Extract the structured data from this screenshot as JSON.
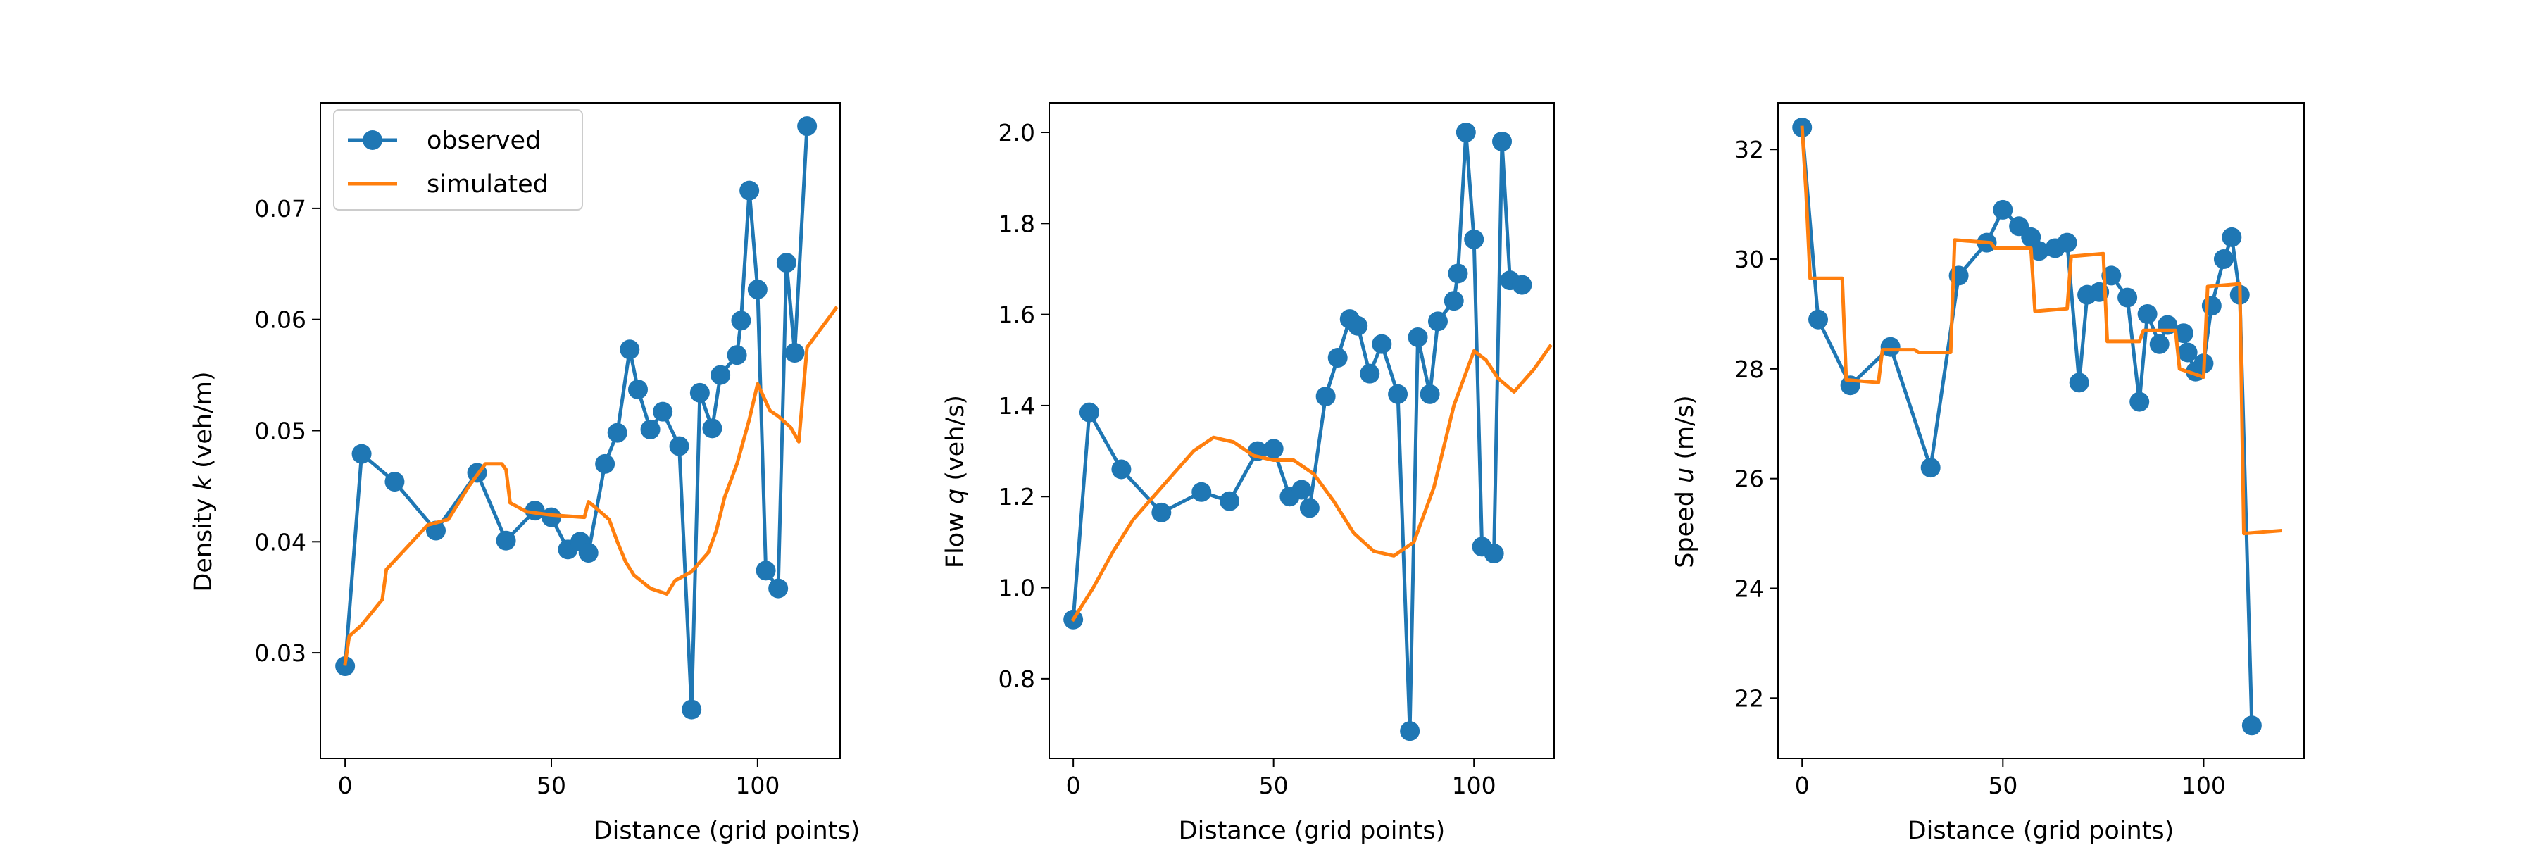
{
  "colors": {
    "observed": "#1f77b4",
    "simulated": "#ff7f0e"
  },
  "legend": {
    "placement": "upper-left",
    "panel": 0,
    "entries": [
      "observed",
      "simulated"
    ]
  },
  "chart_data": [
    {
      "type": "line",
      "xlabel": "Distance (grid points)",
      "ylabel_prefix": "Density ",
      "ylabel_var": "k",
      "ylabel_suffix": " (veh/m)",
      "xlim": [
        -6,
        120
      ],
      "ylim": [
        0.0205,
        0.0795
      ],
      "xticks": [
        0,
        50,
        100
      ],
      "yticks": [
        0.03,
        0.04,
        0.05,
        0.06,
        0.07
      ],
      "ytick_labels": [
        "0.03",
        "0.04",
        "0.05",
        "0.06",
        "0.07"
      ],
      "series": [
        {
          "name": "observed",
          "marker": "circle",
          "x": [
            0,
            4,
            12,
            22,
            32,
            39,
            46,
            50,
            54,
            57,
            59,
            63,
            66,
            69,
            71,
            74,
            77,
            81,
            84,
            86,
            89,
            91,
            95,
            96,
            98,
            100,
            102,
            105,
            107,
            109,
            112
          ],
          "y": [
            0.0288,
            0.0479,
            0.0454,
            0.041,
            0.0462,
            0.0401,
            0.0428,
            0.0422,
            0.0393,
            0.04,
            0.039,
            0.047,
            0.0498,
            0.0573,
            0.0537,
            0.0501,
            0.0517,
            0.0486,
            0.0249,
            0.0534,
            0.0502,
            0.055,
            0.0568,
            0.0599,
            0.0716,
            0.0627,
            0.0374,
            0.0358,
            0.0651,
            0.057,
            0.0774
          ]
        },
        {
          "name": "simulated",
          "x": [
            0,
            1,
            4,
            9,
            10,
            15,
            20,
            25,
            30,
            34,
            38,
            39,
            40,
            44,
            50,
            54,
            58,
            59,
            60,
            64,
            66,
            68,
            70,
            74,
            78,
            80,
            84,
            88,
            90,
            92,
            95,
            98,
            100,
            103,
            105,
            108,
            110,
            112,
            115,
            118,
            119
          ],
          "y": [
            0.029,
            0.0315,
            0.0325,
            0.0348,
            0.0375,
            0.0395,
            0.0415,
            0.042,
            0.045,
            0.047,
            0.047,
            0.0465,
            0.0435,
            0.0427,
            0.0424,
            0.0423,
            0.0422,
            0.0436,
            0.0433,
            0.042,
            0.04,
            0.0382,
            0.037,
            0.0358,
            0.0353,
            0.0365,
            0.0373,
            0.039,
            0.041,
            0.044,
            0.047,
            0.051,
            0.0542,
            0.0518,
            0.0513,
            0.0503,
            0.049,
            0.0575,
            0.059,
            0.0605,
            0.061
          ]
        }
      ]
    },
    {
      "type": "line",
      "xlabel": "Distance (grid points)",
      "ylabel_prefix": "Flow ",
      "ylabel_var": "q",
      "ylabel_suffix": " (veh/s)",
      "xlim": [
        -6,
        120
      ],
      "ylim": [
        0.625,
        2.065
      ],
      "xticks": [
        0,
        50,
        100
      ],
      "yticks": [
        0.8,
        1.0,
        1.2,
        1.4,
        1.6,
        1.8,
        2.0
      ],
      "ytick_labels": [
        "0.8",
        "1.0",
        "1.2",
        "1.4",
        "1.6",
        "1.8",
        "2.0"
      ],
      "series": [
        {
          "name": "observed",
          "marker": "circle",
          "x": [
            0,
            4,
            12,
            22,
            32,
            39,
            46,
            50,
            54,
            57,
            59,
            63,
            66,
            69,
            71,
            74,
            77,
            81,
            84,
            86,
            89,
            91,
            95,
            96,
            98,
            100,
            102,
            105,
            107,
            109,
            112
          ],
          "y": [
            0.93,
            1.385,
            1.26,
            1.165,
            1.21,
            1.19,
            1.3,
            1.305,
            1.2,
            1.215,
            1.175,
            1.42,
            1.505,
            1.59,
            1.575,
            1.47,
            1.535,
            1.425,
            0.685,
            1.55,
            1.425,
            1.585,
            1.63,
            1.69,
            2.0,
            1.765,
            1.09,
            1.075,
            1.98,
            1.675,
            1.665
          ]
        },
        {
          "name": "simulated",
          "x": [
            0,
            5,
            10,
            15,
            20,
            25,
            30,
            35,
            40,
            45,
            50,
            55,
            60,
            65,
            70,
            75,
            80,
            85,
            90,
            95,
            100,
            103,
            106,
            110,
            115,
            119
          ],
          "y": [
            0.93,
            1.0,
            1.08,
            1.15,
            1.2,
            1.25,
            1.3,
            1.33,
            1.32,
            1.29,
            1.28,
            1.28,
            1.25,
            1.19,
            1.12,
            1.08,
            1.07,
            1.1,
            1.22,
            1.4,
            1.52,
            1.5,
            1.46,
            1.43,
            1.48,
            1.53
          ]
        }
      ]
    },
    {
      "type": "line",
      "xlabel": "Distance (grid points)",
      "ylabel_prefix": "Speed ",
      "ylabel_var": "u",
      "ylabel_suffix": " (m/s)",
      "xlim": [
        -6,
        125
      ],
      "ylim": [
        20.9,
        32.85
      ],
      "xticks": [
        0,
        50,
        100
      ],
      "yticks": [
        22,
        24,
        26,
        28,
        30,
        32
      ],
      "ytick_labels": [
        "22",
        "24",
        "26",
        "28",
        "30",
        "32"
      ],
      "series": [
        {
          "name": "observed",
          "marker": "circle",
          "x": [
            0,
            4,
            12,
            22,
            32,
            39,
            46,
            50,
            54,
            57,
            59,
            63,
            66,
            69,
            71,
            74,
            77,
            81,
            84,
            86,
            89,
            91,
            95,
            96,
            98,
            100,
            102,
            105,
            107,
            109,
            112
          ],
          "y": [
            32.4,
            28.9,
            27.7,
            28.4,
            26.2,
            29.7,
            30.3,
            30.9,
            30.6,
            30.4,
            30.15,
            30.2,
            30.3,
            27.75,
            29.35,
            29.4,
            29.7,
            29.3,
            27.4,
            29.0,
            28.45,
            28.8,
            28.65,
            28.3,
            27.95,
            28.1,
            29.15,
            30.0,
            30.4,
            29.35,
            21.5
          ]
        },
        {
          "name": "simulated",
          "x": [
            0,
            1,
            2,
            10,
            11,
            19,
            20,
            28,
            29,
            37,
            38,
            47,
            48,
            57,
            58,
            66,
            67,
            75,
            76,
            84,
            85,
            93,
            94,
            100,
            101,
            109,
            110,
            119
          ],
          "y": [
            32.4,
            31.2,
            29.65,
            29.65,
            27.8,
            27.75,
            28.35,
            28.35,
            28.3,
            28.3,
            30.35,
            30.3,
            30.2,
            30.2,
            29.05,
            29.1,
            30.05,
            30.1,
            28.5,
            28.5,
            28.7,
            28.7,
            28.0,
            27.85,
            29.5,
            29.55,
            25.0,
            25.05
          ]
        }
      ]
    }
  ]
}
